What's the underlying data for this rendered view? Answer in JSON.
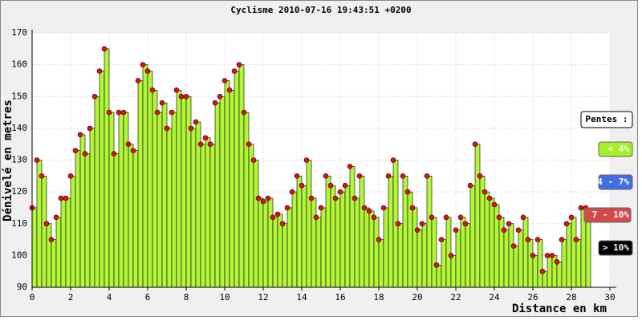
{
  "chart_data": {
    "type": "area",
    "title": "Cyclisme 2010-07-16 19:43:51 +0200",
    "xlabel": "Distance en km",
    "ylabel": "Dénivelé en metres",
    "xlim": [
      0,
      30
    ],
    "ylim": [
      90,
      170
    ],
    "xticks": [
      0,
      2,
      4,
      6,
      8,
      10,
      12,
      14,
      16,
      18,
      20,
      22,
      24,
      26,
      28,
      30
    ],
    "yticks": [
      90,
      100,
      110,
      120,
      130,
      140,
      150,
      160,
      170
    ],
    "grid": true,
    "x": [
      0,
      0.25,
      0.5,
      0.75,
      1,
      1.25,
      1.5,
      1.75,
      2,
      2.25,
      2.5,
      2.75,
      3,
      3.25,
      3.5,
      3.75,
      4,
      4.25,
      4.5,
      4.75,
      5,
      5.25,
      5.5,
      5.75,
      6,
      6.25,
      6.5,
      6.75,
      7,
      7.25,
      7.5,
      7.75,
      8,
      8.25,
      8.5,
      8.75,
      9,
      9.25,
      9.5,
      9.75,
      10,
      10.25,
      10.5,
      10.75,
      11,
      11.25,
      11.5,
      11.75,
      12,
      12.25,
      12.5,
      12.75,
      13,
      13.25,
      13.5,
      13.75,
      14,
      14.25,
      14.5,
      14.75,
      15,
      15.25,
      15.5,
      15.75,
      16,
      16.25,
      16.5,
      16.75,
      17,
      17.25,
      17.5,
      17.75,
      18,
      18.25,
      18.5,
      18.75,
      19,
      19.25,
      19.5,
      19.75,
      20,
      20.25,
      20.5,
      20.75,
      21,
      21.25,
      21.5,
      21.75,
      22,
      22.25,
      22.5,
      22.75,
      23,
      23.25,
      23.5,
      23.75,
      24,
      24.25,
      24.5,
      24.75,
      25,
      25.25,
      25.5,
      25.75,
      26,
      26.25,
      26.5,
      26.75,
      27,
      27.25,
      27.5,
      27.75,
      28,
      28.25,
      28.5,
      28.75
    ],
    "series": [
      {
        "color": "#b3f53a",
        "marker_color": "#dd1111",
        "values": [
          115,
          130,
          125,
          110,
          105,
          112,
          118,
          118,
          125,
          133,
          138,
          132,
          140,
          150,
          158,
          165,
          145,
          132,
          145,
          145,
          135,
          133,
          155,
          160,
          158,
          152,
          145,
          148,
          140,
          145,
          152,
          150,
          150,
          140,
          142,
          135,
          137,
          135,
          148,
          150,
          155,
          152,
          158,
          160,
          145,
          135,
          130,
          118,
          117,
          118,
          112,
          113,
          110,
          115,
          120,
          125,
          122,
          130,
          118,
          112,
          115,
          125,
          122,
          118,
          120,
          122,
          128,
          118,
          125,
          115,
          114,
          112,
          105,
          115,
          125,
          130,
          110,
          125,
          120,
          115,
          108,
          110,
          125,
          112,
          97,
          105,
          112,
          100,
          108,
          112,
          110,
          122,
          135,
          125,
          120,
          118,
          116,
          112,
          108,
          110,
          103,
          108,
          112,
          105,
          100,
          105,
          95,
          100,
          100,
          98,
          105,
          110,
          112,
          105,
          115,
          115
        ]
      }
    ],
    "legend": {
      "title": "Pentes :",
      "items": [
        {
          "label": "< 4%",
          "color": "#a6f02a"
        },
        {
          "label": "4 - 7%",
          "color": "#3f6fe0"
        },
        {
          "label": "7 - 10%",
          "color": "#d04a4a"
        },
        {
          "label": "> 10%",
          "color": "#000000"
        }
      ]
    }
  }
}
